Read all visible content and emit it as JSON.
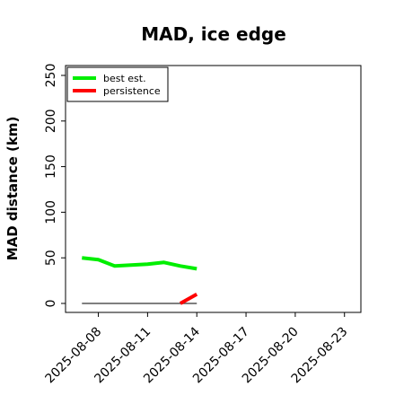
{
  "chart_data": {
    "type": "line",
    "title": "MAD, ice edge",
    "xlabel": "",
    "ylabel": "MAD distance (km)",
    "ylim": [
      0,
      250
    ],
    "yticks": [
      0,
      50,
      100,
      150,
      200,
      250
    ],
    "xlim": [
      "2025-08-06",
      "2025-08-24"
    ],
    "xticks": [
      "2025-08-08",
      "2025-08-11",
      "2025-08-14",
      "2025-08-17",
      "2025-08-20",
      "2025-08-23"
    ],
    "legend": "top-left",
    "grid": false,
    "series": [
      {
        "name": "best est.",
        "color": "#00ee00",
        "x": [
          "2025-08-07",
          "2025-08-08",
          "2025-08-09",
          "2025-08-10",
          "2025-08-11",
          "2025-08-12",
          "2025-08-13",
          "2025-08-14"
        ],
        "y": [
          50,
          48,
          41,
          42,
          43,
          45,
          41,
          38
        ]
      },
      {
        "name": "persistence",
        "color": "#ff0000",
        "x": [
          "2025-08-13",
          "2025-08-14"
        ],
        "y": [
          0,
          10
        ]
      }
    ],
    "reference_line": {
      "color": "#555555",
      "x": [
        "2025-08-07",
        "2025-08-14"
      ],
      "y": [
        0,
        0
      ]
    }
  }
}
